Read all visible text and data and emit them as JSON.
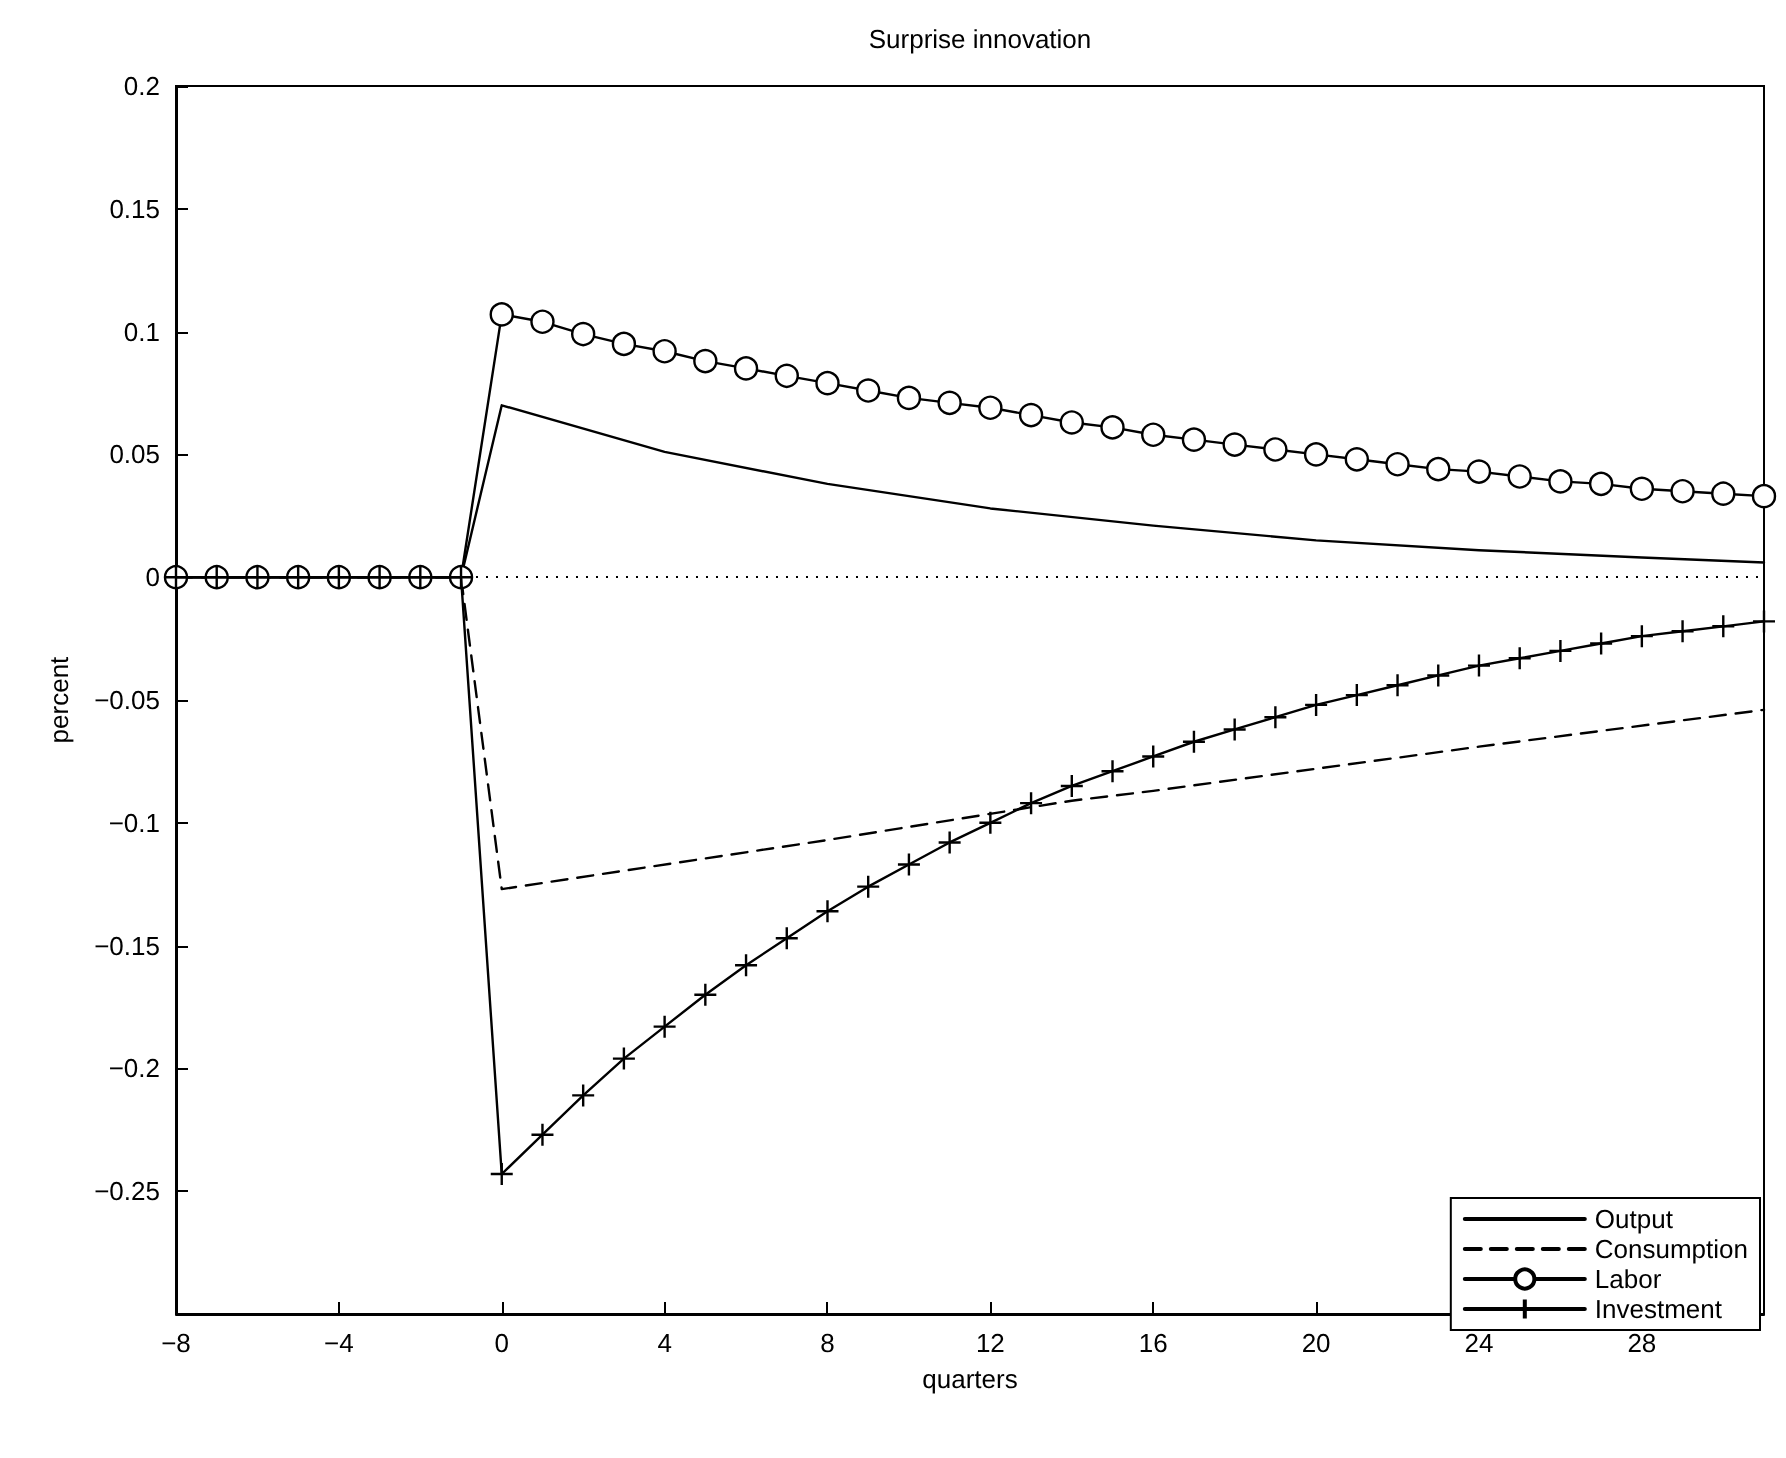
{
  "chart_data": {
    "type": "line",
    "title": "Surprise innovation",
    "xlabel": "quarters",
    "ylabel": "percent",
    "xlim": [
      -8,
      31
    ],
    "xticks": [
      -8,
      -4,
      0,
      4,
      8,
      12,
      16,
      20,
      24,
      28
    ],
    "ylim": [
      -0.3,
      0.2
    ],
    "yticks": [
      -0.25,
      -0.2,
      -0.15,
      -0.1,
      -0.05,
      0,
      0.05,
      0.1,
      0.15,
      0.2
    ],
    "grid": false,
    "legend": "bottom right",
    "ref_lines": [
      {
        "axis": "y",
        "value": 0,
        "label": null,
        "color": "#000000",
        "line_style": "dotted"
      }
    ],
    "series": [
      {
        "name": "Output",
        "color": "#000000",
        "marker": "none",
        "line_style": "solid",
        "x": [
          -8,
          -1,
          0,
          4,
          8,
          12,
          16,
          20,
          24,
          28,
          31
        ],
        "values": [
          0,
          0,
          0.07,
          0.051,
          0.038,
          0.028,
          0.021,
          0.015,
          0.011,
          0.008,
          0.006
        ]
      },
      {
        "name": "Consumption",
        "color": "#000000",
        "marker": "none",
        "line_style": "dashed",
        "x": [
          -8,
          -1,
          0,
          8,
          14,
          16,
          24,
          31
        ],
        "values": [
          0,
          0,
          -0.127,
          -0.107,
          -0.091,
          -0.087,
          -0.069,
          -0.054
        ]
      },
      {
        "name": "Labor",
        "color": "#000000",
        "marker": "circle",
        "line_style": "solid",
        "x": [
          -8,
          -7,
          -6,
          -5,
          -4,
          -3,
          -2,
          -1,
          0,
          1,
          2,
          3,
          4,
          5,
          6,
          7,
          8,
          9,
          10,
          11,
          12,
          13,
          14,
          15,
          16,
          17,
          18,
          19,
          20,
          21,
          22,
          23,
          24,
          25,
          26,
          27,
          28,
          29,
          30,
          31
        ],
        "values": [
          0,
          0,
          0,
          0,
          0,
          0,
          0,
          0,
          0.107,
          0.104,
          0.099,
          0.095,
          0.092,
          0.088,
          0.085,
          0.082,
          0.079,
          0.076,
          0.073,
          0.071,
          0.069,
          0.066,
          0.063,
          0.061,
          0.058,
          0.056,
          0.054,
          0.052,
          0.05,
          0.048,
          0.046,
          0.044,
          0.043,
          0.041,
          0.039,
          0.038,
          0.036,
          0.035,
          0.034,
          0.033
        ]
      },
      {
        "name": "Investment",
        "color": "#000000",
        "marker": "cross",
        "line_style": "solid",
        "x": [
          -8,
          -7,
          -6,
          -5,
          -4,
          -3,
          -2,
          -1,
          0,
          1,
          2,
          3,
          4,
          5,
          6,
          7,
          8,
          9,
          10,
          11,
          12,
          13,
          14,
          15,
          16,
          17,
          18,
          19,
          20,
          21,
          22,
          23,
          24,
          25,
          26,
          27,
          28,
          29,
          30,
          31
        ],
        "values": [
          0,
          0,
          0,
          0,
          0,
          0,
          0,
          0,
          -0.243,
          -0.227,
          -0.211,
          -0.196,
          -0.183,
          -0.17,
          -0.158,
          -0.147,
          -0.136,
          -0.126,
          -0.117,
          -0.108,
          -0.1,
          -0.092,
          -0.085,
          -0.079,
          -0.073,
          -0.067,
          -0.062,
          -0.057,
          -0.052,
          -0.048,
          -0.044,
          -0.04,
          -0.036,
          -0.033,
          -0.03,
          -0.027,
          -0.024,
          -0.022,
          -0.02,
          -0.018
        ]
      }
    ]
  }
}
